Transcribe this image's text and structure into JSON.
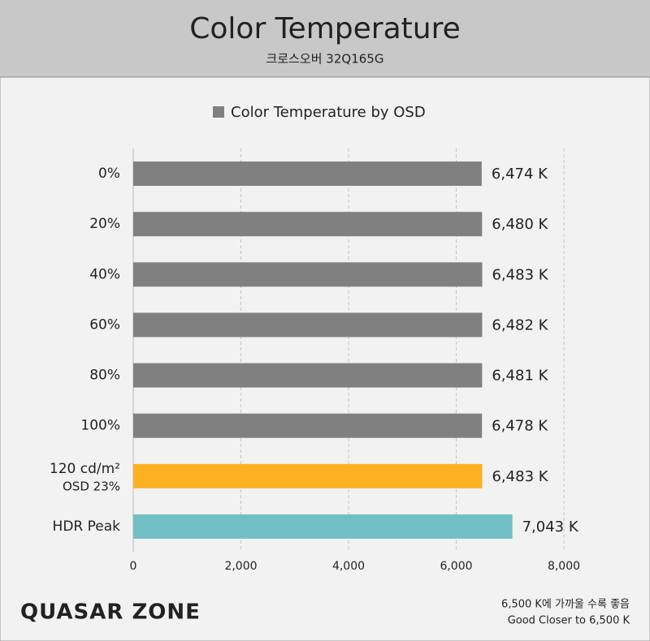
{
  "chart_data": {
    "type": "bar",
    "orientation": "horizontal",
    "title": "Color Temperature",
    "subtitle": "크로스오버 32Q165G",
    "categories": [
      "0%",
      "20%",
      "40%",
      "60%",
      "80%",
      "100%",
      "120 cd/m²",
      "HDR Peak"
    ],
    "category_notes": [
      null,
      null,
      null,
      null,
      null,
      null,
      "OSD 23%",
      null
    ],
    "series": [
      {
        "name": "Color Temperature by OSD",
        "color": "#808080",
        "values": [
          6474,
          6480,
          6483,
          6482,
          6481,
          6478,
          6483,
          7043
        ],
        "value_labels": [
          "6,474 K",
          "6,480 K",
          "6,483 K",
          "6,482 K",
          "6,481 K",
          "6,478 K",
          "6,483 K",
          "7,043 K"
        ],
        "bar_colors": [
          "#808080",
          "#808080",
          "#808080",
          "#808080",
          "#808080",
          "#808080",
          "#fdb022",
          "#72bfc6"
        ]
      }
    ],
    "xlim": [
      0,
      8000
    ],
    "xticks": [
      0,
      {
        "value": 2000,
        "label": "2,000"
      },
      {
        "value": 4000,
        "label": "4,000"
      },
      {
        "value": 6000,
        "label": "6,000"
      },
      {
        "value": 8000,
        "label": "8,000"
      }
    ],
    "grid": true,
    "legend": "top",
    "logo": "QUASAR ZONE",
    "footnotes": [
      "6,500 K에 가까울 수록 좋음",
      "Good Closer to 6,500 K"
    ]
  }
}
